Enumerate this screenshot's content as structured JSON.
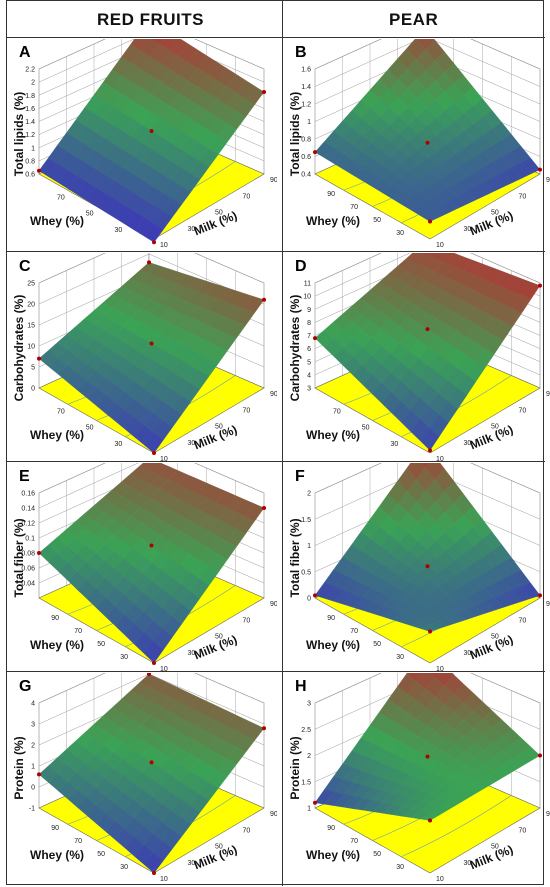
{
  "column_titles": [
    "RED FRUITS",
    "PEAR"
  ],
  "colors": {
    "floor": "#ffff00",
    "blue": "#3c3cb4",
    "green": "#3aa355",
    "red": "#b33434",
    "dark": "#222222",
    "frame": "#333333"
  },
  "chart_data": [
    {
      "type": "surface3d",
      "label": "A",
      "column": "RED FRUITS",
      "zlabel": "Total lipids (%)",
      "xlabel": "Milk (%)",
      "ylabel": "Whey (%)",
      "x_ticks": [
        "10",
        "30",
        "50",
        "70",
        "90"
      ],
      "y_ticks": [
        "30",
        "50",
        "70"
      ],
      "z_ticks": [
        "0.6",
        "0.8",
        "1",
        "1.2",
        "1.4",
        "1.6",
        "1.8",
        "2",
        "2.2"
      ],
      "zlim": [
        0.6,
        2.2
      ],
      "corners": {
        "back": 2.2,
        "left": 0.65,
        "right": 1.85,
        "front": 0.55
      }
    },
    {
      "type": "surface3d",
      "label": "B",
      "column": "PEAR",
      "zlabel": "Total lipids (%)",
      "xlabel": "Milk (%)",
      "ylabel": "Whey (%)",
      "x_ticks": [
        "10",
        "30",
        "50",
        "70",
        "90"
      ],
      "y_ticks": [
        "30",
        "50",
        "70",
        "90"
      ],
      "z_ticks": [
        "0.4",
        "0.6",
        "0.8",
        "1",
        "1.2",
        "1.4",
        "1.6"
      ],
      "zlim": [
        0.4,
        1.6
      ],
      "corners": {
        "back": 1.5,
        "left": 0.65,
        "right": 0.45,
        "front": 0.6
      }
    },
    {
      "type": "surface3d",
      "label": "C",
      "column": "RED FRUITS",
      "zlabel": "Carbohydrates (%)",
      "xlabel": "Milk (%)",
      "ylabel": "Whey (%)",
      "x_ticks": [
        "10",
        "30",
        "50",
        "70",
        "90"
      ],
      "y_ticks": [
        "30",
        "50",
        "70"
      ],
      "z_ticks": [
        "0",
        "5",
        "10",
        "15",
        "20",
        "25"
      ],
      "zlim": [
        0,
        25
      ],
      "corners": {
        "back": 18,
        "left": 7,
        "right": 21,
        "front": 0
      }
    },
    {
      "type": "surface3d",
      "label": "D",
      "column": "PEAR",
      "zlabel": "Carbohydrates (%)",
      "xlabel": "Milk (%)",
      "ylabel": "Whey (%)",
      "x_ticks": [
        "10",
        "30",
        "50",
        "70",
        "90"
      ],
      "y_ticks": [
        "30",
        "50",
        "70"
      ],
      "z_ticks": [
        "3",
        "4",
        "5",
        "6",
        "7",
        "8",
        "9",
        "10",
        "11"
      ],
      "zlim": [
        3,
        11
      ],
      "corners": {
        "back": 10.3,
        "left": 6.8,
        "right": 10.8,
        "front": 3.2
      }
    },
    {
      "type": "surface3d",
      "label": "E",
      "column": "RED FRUITS",
      "zlabel": "Total fiber (%)",
      "xlabel": "Milk (%)",
      "ylabel": "Whey (%)",
      "x_ticks": [
        "10",
        "30",
        "50",
        "70",
        "90"
      ],
      "y_ticks": [
        "30",
        "50",
        "70",
        "90"
      ],
      "z_ticks": [
        "0.04",
        "0.06",
        "0.08",
        "0.1",
        "0.12",
        "0.14",
        "0.16"
      ],
      "zlim": [
        0.02,
        0.16
      ],
      "corners": {
        "back": 0.14,
        "left": 0.08,
        "right": 0.14,
        "front": 0.02
      }
    },
    {
      "type": "surface3d",
      "label": "F",
      "column": "PEAR",
      "zlabel": "Total fiber (%)",
      "xlabel": "Milk (%)",
      "ylabel": "Whey (%)",
      "x_ticks": [
        "10",
        "30",
        "50",
        "70",
        "90"
      ],
      "y_ticks": [
        "30",
        "50",
        "70",
        "90"
      ],
      "z_ticks": [
        "0",
        "0.5",
        "1",
        "1.5",
        "2"
      ],
      "zlim": [
        0,
        2
      ],
      "corners": {
        "back": 2,
        "left": 0.05,
        "right": 0.05,
        "front": 0.6
      }
    },
    {
      "type": "surface3d",
      "label": "G",
      "column": "RED FRUITS",
      "zlabel": "Protein (%)",
      "xlabel": "Milk (%)",
      "ylabel": "Whey (%)",
      "x_ticks": [
        "10",
        "30",
        "50",
        "70",
        "90"
      ],
      "y_ticks": [
        "30",
        "50",
        "70",
        "90"
      ],
      "z_ticks": [
        "-1",
        "0",
        "1",
        "2",
        "3",
        "4"
      ],
      "zlim": [
        -1,
        4
      ],
      "corners": {
        "back": 3,
        "left": 0.6,
        "right": 2.8,
        "front": -1
      }
    },
    {
      "type": "surface3d",
      "label": "H",
      "column": "PEAR",
      "zlabel": "Protein (%)",
      "xlabel": "Milk (%)",
      "ylabel": "Whey (%)",
      "x_ticks": [
        "10",
        "30",
        "50",
        "70",
        "90"
      ],
      "y_ticks": [
        "30",
        "50",
        "70",
        "90"
      ],
      "z_ticks": [
        "1",
        "1.5",
        "2",
        "2.5",
        "3"
      ],
      "zlim": [
        1,
        3
      ],
      "corners": {
        "back": 3.1,
        "left": 1.1,
        "right": 2.0,
        "front": 2.0
      }
    }
  ]
}
